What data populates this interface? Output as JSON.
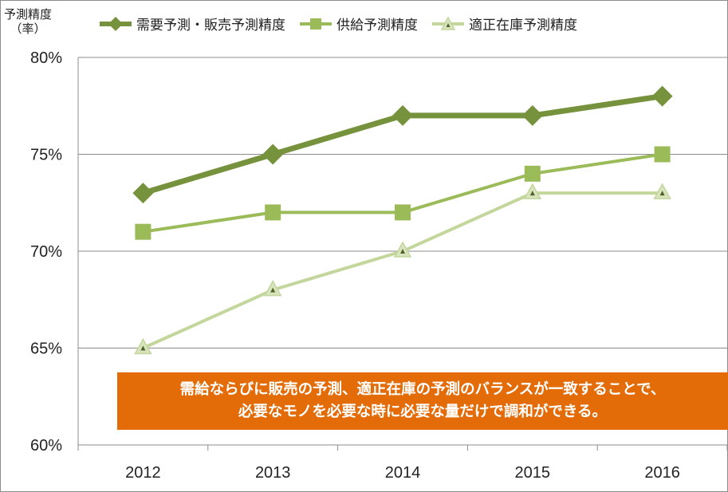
{
  "chart_data": {
    "type": "line",
    "ylabel": "予測精度\n（率）",
    "categories": [
      "2012",
      "2013",
      "2014",
      "2015",
      "2016"
    ],
    "ylim": [
      60,
      80
    ],
    "y_ticks": [
      "80%",
      "75%",
      "70%",
      "65%",
      "60%"
    ],
    "y_tick_values": [
      80,
      75,
      70,
      65,
      60
    ],
    "grid": true,
    "legend_position": "top",
    "series": [
      {
        "name": "需要予測・販売予測精度",
        "values": [
          73,
          75,
          77,
          77,
          78
        ],
        "color": "#76923c",
        "marker": "diamond"
      },
      {
        "name": "供給予測精度",
        "values": [
          71,
          72,
          72,
          74,
          75
        ],
        "color": "#9bbb59",
        "marker": "square"
      },
      {
        "name": "適正在庫予測精度",
        "values": [
          65,
          68,
          70,
          73,
          73
        ],
        "color": "#c3d69b",
        "marker": "triangle"
      }
    ],
    "annotation": {
      "line1": "需給ならびに販売の予測、適正在庫の予測のバランスが一致することで、",
      "line2": "必要なモノを必要な時に必要な量だけで調和ができる。",
      "color": "#e36c09"
    }
  }
}
